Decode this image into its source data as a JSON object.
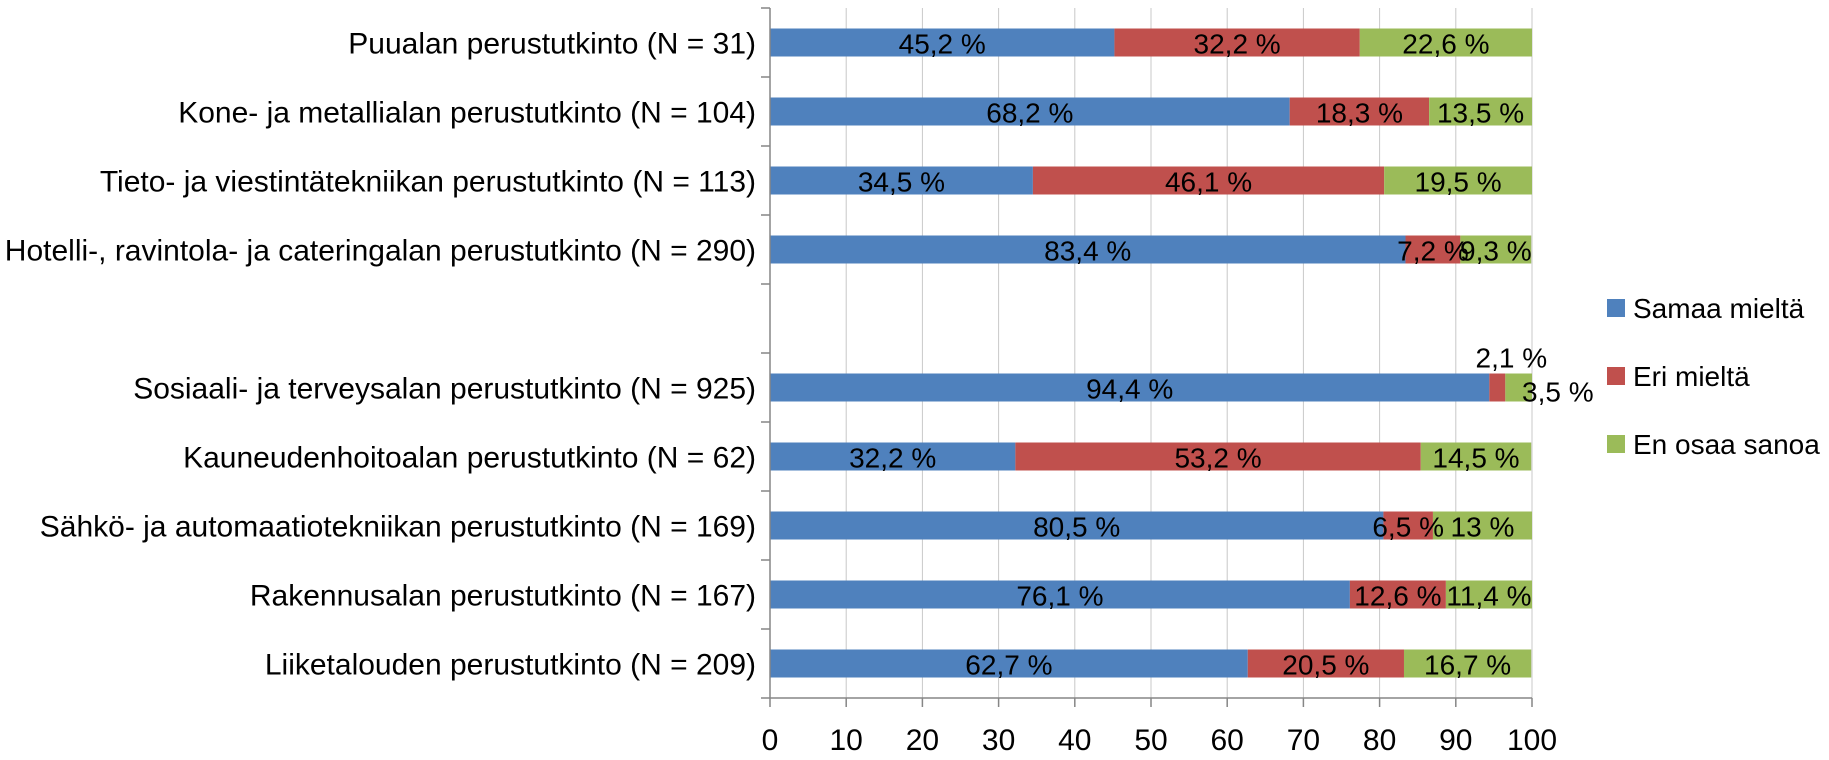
{
  "chart_data": {
    "type": "bar",
    "orientation": "horizontal",
    "stacked": true,
    "xlim": [
      0,
      100
    ],
    "x_ticks": [
      "0",
      "10",
      "20",
      "30",
      "40",
      "50",
      "60",
      "70",
      "80",
      "90",
      "100"
    ],
    "grid": true,
    "legend_position": "right",
    "categories": [
      "Puualan perustutkinto (N = 31)",
      "Kone- ja metallialan perustutkinto (N = 104)",
      "Tieto- ja viestintätekniikan perustutkinto (N = 113)",
      "Hotelli-, ravintola- ja cateringalan perustutkinto (N = 290)",
      "",
      "Sosiaali- ja terveysalan perustutkinto (N = 925)",
      "Kauneudenhoitoalan perustutkinto (N = 62)",
      "Sähkö- ja automaatiotekniikan perustutkinto (N = 169)",
      "Rakennusalan perustutkinto (N = 167)",
      "Liiketalouden perustutkinto (N = 209)"
    ],
    "series": [
      {
        "name": "Samaa mieltä",
        "color": "#4f81bd",
        "values": [
          45.2,
          68.2,
          34.5,
          83.4,
          null,
          94.4,
          32.2,
          80.5,
          76.1,
          62.7
        ],
        "labels": [
          "45,2 %",
          "68,2 %",
          "34,5 %",
          "83,4 %",
          "",
          "94,4 %",
          "32,2 %",
          "80,5 %",
          "76,1 %",
          "62,7 %"
        ]
      },
      {
        "name": "Eri mieltä",
        "color": "#c0504d",
        "values": [
          32.2,
          18.3,
          46.1,
          7.2,
          null,
          2.1,
          53.2,
          6.5,
          12.6,
          20.5
        ],
        "labels": [
          "32,2 %",
          "18,3 %",
          "46,1 %",
          "7,2 %",
          "",
          "2,1 %",
          "53,2 %",
          "6,5 %",
          "12,6 %",
          "20,5 %"
        ]
      },
      {
        "name": "En osaa sanoa",
        "color": "#9bbb59",
        "values": [
          22.6,
          13.5,
          19.5,
          9.3,
          null,
          3.5,
          14.5,
          13,
          11.4,
          16.7
        ],
        "labels": [
          "22,6 %",
          "13,5 %",
          "19,5 %",
          "9,3 %",
          "",
          "3,5 %",
          "14,5 %",
          "13 %",
          "11,4 %",
          "16,7 %"
        ]
      }
    ]
  }
}
